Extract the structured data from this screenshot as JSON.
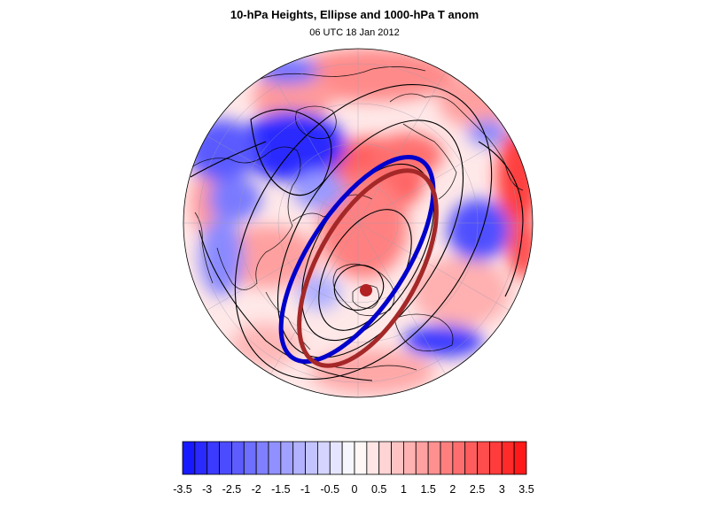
{
  "title": "10-hPa Heights, Ellipse and 1000-hPa T anom",
  "subtitle": "06 UTC 18 Jan 2012",
  "colors": {
    "cold_extreme": "#1010ff",
    "warm_extreme": "#ff1010",
    "ellipse_blue": "#0000cc",
    "ellipse_red": "#a52828",
    "center_marker": "#b22222",
    "contour": "#000000"
  },
  "colorbar": {
    "levels": [
      -3.5,
      -3.25,
      -3,
      -2.75,
      -2.5,
      -2.25,
      -2,
      -1.75,
      -1.5,
      -1.25,
      -1,
      -0.75,
      -0.5,
      -0.25,
      0,
      0.25,
      0.5,
      0.75,
      1,
      1.25,
      1.5,
      1.75,
      2,
      2.25,
      2.5,
      2.75,
      3,
      3.25,
      3.5
    ],
    "tick_labels": [
      "-3.5",
      "-3",
      "-2.5",
      "-2",
      "-1.5",
      "-1",
      "-0.5",
      "0",
      "0.5",
      "1",
      "1.5",
      "2",
      "2.5",
      "3",
      "3.5"
    ]
  }
}
